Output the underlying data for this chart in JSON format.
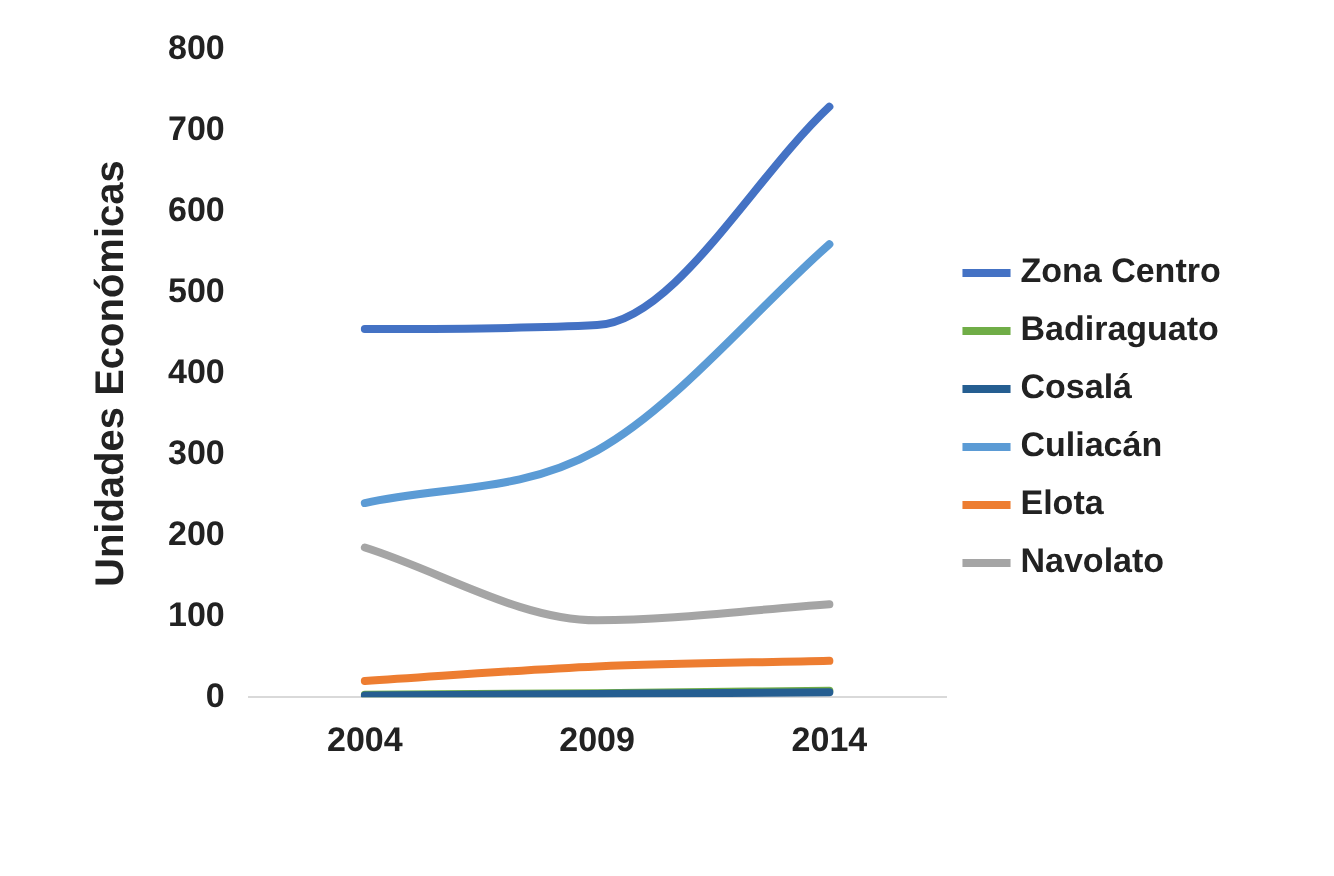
{
  "chart_data": {
    "type": "line",
    "ylabel": "Unidades Económicas",
    "categories": [
      "2004",
      "2009",
      "2014"
    ],
    "series": [
      {
        "name": "Zona Centro",
        "color": "#4472c4",
        "values": [
          455,
          460,
          730
        ]
      },
      {
        "name": "Badiraguato",
        "color": "#70ad47",
        "values": [
          3,
          5,
          8
        ]
      },
      {
        "name": "Cosalá",
        "color": "#255e91",
        "values": [
          2,
          4,
          6
        ]
      },
      {
        "name": "Culiacán",
        "color": "#5b9bd5",
        "values": [
          240,
          305,
          560
        ]
      },
      {
        "name": "Elota",
        "color": "#ed7d31",
        "values": [
          20,
          38,
          45
        ]
      },
      {
        "name": "Navolato",
        "color": "#a5a5a5",
        "values": [
          185,
          95,
          115
        ]
      }
    ],
    "ylim": [
      0,
      800
    ],
    "yticks": [
      0,
      100,
      200,
      300,
      400,
      500,
      600,
      700,
      800
    ],
    "grid": false,
    "legend": "right",
    "marker": "none",
    "line_style": "solid"
  }
}
